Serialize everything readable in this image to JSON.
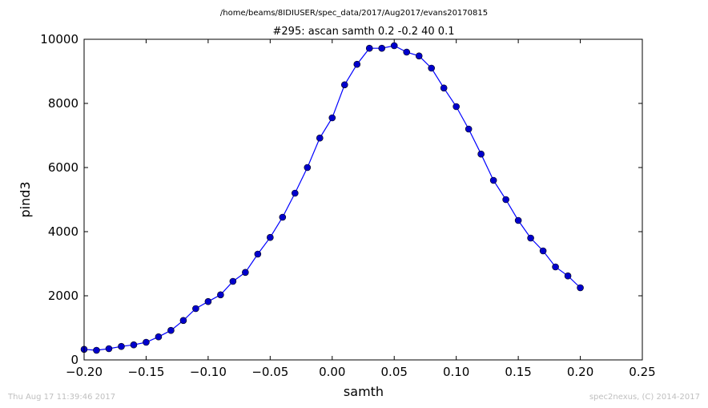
{
  "figure": {
    "suptitle": "/home/beams/8IDIUSER/spec_data/2017/Aug2017/evans20170815",
    "footer_left": "Thu Aug 17 11:39:46 2017",
    "footer_right": "spec2nexus, (C) 2014-2017"
  },
  "colors": {
    "line": "#0000ff",
    "marker_fill": "#0000cc",
    "axes": "#000000",
    "footer": "#bfbfbf"
  },
  "chart_data": {
    "type": "line",
    "title": "#295: ascan  samth 0.2 -0.2  40 0.1",
    "xlabel": "samth",
    "ylabel": "pind3",
    "xlim": [
      -0.2,
      0.25
    ],
    "ylim": [
      0,
      10000
    ],
    "xticks": [
      -0.2,
      -0.15,
      -0.1,
      -0.05,
      0.0,
      0.05,
      0.1,
      0.15,
      0.2,
      0.25
    ],
    "xtick_labels": [
      "−0.20",
      "−0.15",
      "−0.10",
      "−0.05",
      "0.00",
      "0.05",
      "0.10",
      "0.15",
      "0.20",
      "0.25"
    ],
    "yticks": [
      0,
      2000,
      4000,
      6000,
      8000,
      10000
    ],
    "ytick_labels": [
      "0",
      "2000",
      "4000",
      "6000",
      "8000",
      "10000"
    ],
    "grid": false,
    "marker": "circle",
    "series": [
      {
        "x": [
          -0.2,
          -0.19,
          -0.18,
          -0.17,
          -0.16,
          -0.15,
          -0.14,
          -0.13,
          -0.12,
          -0.11,
          -0.1,
          -0.09,
          -0.08,
          -0.07,
          -0.06,
          -0.05,
          -0.04,
          -0.03,
          -0.02,
          -0.01,
          0.0,
          0.01,
          0.02,
          0.03,
          0.04,
          0.05,
          0.06,
          0.07,
          0.08,
          0.09,
          0.1,
          0.11,
          0.12,
          0.13,
          0.14,
          0.15,
          0.16,
          0.17,
          0.18,
          0.19,
          0.2
        ],
        "y": [
          330,
          300,
          350,
          420,
          470,
          550,
          720,
          920,
          1230,
          1600,
          1820,
          2030,
          2450,
          2730,
          3300,
          3820,
          4450,
          5200,
          6000,
          6920,
          7550,
          8580,
          9220,
          9720,
          9720,
          9800,
          9600,
          9480,
          9100,
          8480,
          7900,
          7200,
          6420,
          5600,
          5000,
          4350,
          3800,
          3400,
          2900,
          2620,
          2250
        ]
      }
    ]
  }
}
